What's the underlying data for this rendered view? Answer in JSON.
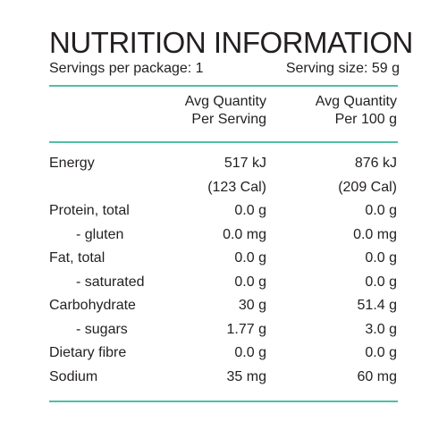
{
  "title": "NUTRITION INFORMATION",
  "servings_per_package": "Servings per package: 1",
  "serving_size": "Serving size: 59 g",
  "columns": {
    "per_serving": [
      "Avg Quantity",
      "Per Serving"
    ],
    "per_100g": [
      "Avg Quantity",
      "Per 100 g"
    ]
  },
  "rows": [
    {
      "label": "Energy",
      "sub": false,
      "per_serving": "517 kJ",
      "per_100g": "876 kJ"
    },
    {
      "label": "",
      "sub": false,
      "per_serving": "(123 Cal)",
      "per_100g": "(209 Cal)"
    },
    {
      "label": "Protein, total",
      "sub": false,
      "per_serving": "0.0 g",
      "per_100g": "0.0 g"
    },
    {
      "label": "- gluten",
      "sub": true,
      "per_serving": "0.0 mg",
      "per_100g": "0.0 mg"
    },
    {
      "label": "Fat, total",
      "sub": false,
      "per_serving": "0.0 g",
      "per_100g": "0.0 g"
    },
    {
      "label": "- saturated",
      "sub": true,
      "per_serving": "0.0 g",
      "per_100g": "0.0 g"
    },
    {
      "label": "Carbohydrate",
      "sub": false,
      "per_serving": "30 g",
      "per_100g": "51.4 g"
    },
    {
      "label": "- sugars",
      "sub": true,
      "per_serving": "1.77 g",
      "per_100g": "3.0 g"
    },
    {
      "label": "Dietary fibre",
      "sub": false,
      "per_serving": "0.0 g",
      "per_100g": "0.0 g"
    },
    {
      "label": "Sodium",
      "sub": false,
      "per_serving": "35 mg",
      "per_100g": "60 mg"
    }
  ],
  "colors": {
    "rule": "#4fbfa6",
    "text": "#231f20"
  }
}
